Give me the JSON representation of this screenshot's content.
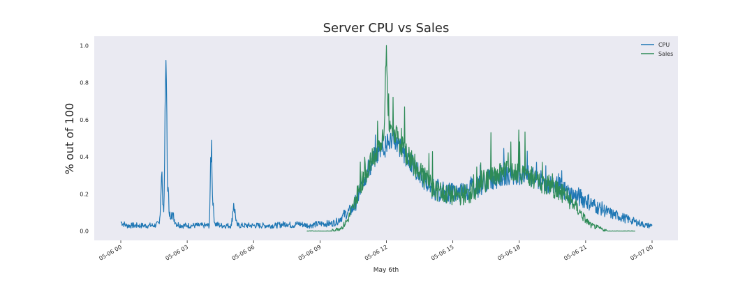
{
  "chart_data": {
    "type": "line",
    "title": "Server CPU vs Sales",
    "xlabel": "May 6th",
    "ylabel": "% out of 100",
    "xlim": [
      "2016-05-06 00:00",
      "2016-05-07 00:00"
    ],
    "ylim": [
      -0.05,
      1.05
    ],
    "yticks": [
      0.0,
      0.2,
      0.4,
      0.6,
      0.8,
      1.0
    ],
    "ytick_labels": [
      "0.0",
      "0.2",
      "0.4",
      "0.6",
      "0.8",
      "1.0"
    ],
    "xticks_hours": [
      0,
      3,
      6,
      9,
      12,
      15,
      18,
      21,
      24
    ],
    "xtick_labels": [
      "05-06 00",
      "05-06 03",
      "05-06 06",
      "05-06 09",
      "05-06 12",
      "05-06 15",
      "05-06 18",
      "05-06 21",
      "05-07 00"
    ],
    "grid": false,
    "legend_position": "top-right",
    "series": [
      {
        "name": "CPU",
        "color": "#1f77b4",
        "x_hours": [
          0.0,
          0.25,
          0.5,
          0.75,
          1.0,
          1.25,
          1.5,
          1.75,
          1.85,
          1.95,
          2.0,
          2.05,
          2.1,
          2.2,
          2.3,
          2.5,
          2.75,
          3.0,
          3.25,
          3.5,
          3.75,
          4.0,
          4.05,
          4.1,
          4.15,
          4.25,
          4.5,
          4.75,
          5.0,
          5.1,
          5.25,
          5.5,
          5.75,
          6.0,
          6.5,
          7.0,
          7.5,
          7.75,
          8.0,
          8.5,
          9.0,
          9.5,
          9.75,
          10.0,
          10.25,
          10.5,
          10.75,
          11.0,
          11.25,
          11.5,
          11.75,
          12.0,
          12.25,
          12.5,
          12.75,
          13.0,
          13.25,
          13.5,
          13.75,
          14.0,
          14.25,
          14.5,
          14.75,
          15.0,
          15.25,
          15.5,
          15.75,
          16.0,
          16.25,
          16.5,
          16.75,
          17.0,
          17.25,
          17.5,
          17.75,
          18.0,
          18.25,
          18.5,
          18.75,
          19.0,
          19.25,
          19.5,
          19.75,
          20.0,
          20.25,
          20.5,
          20.75,
          21.0,
          21.25,
          21.5,
          21.75,
          22.0,
          22.25,
          22.5,
          22.75,
          23.0,
          23.25,
          23.5,
          23.75,
          24.0
        ],
        "values": [
          0.05,
          0.03,
          0.03,
          0.03,
          0.03,
          0.03,
          0.03,
          0.04,
          0.32,
          0.08,
          0.6,
          1.0,
          0.3,
          0.08,
          0.1,
          0.04,
          0.03,
          0.03,
          0.03,
          0.03,
          0.03,
          0.03,
          0.3,
          0.49,
          0.15,
          0.04,
          0.03,
          0.03,
          0.03,
          0.15,
          0.03,
          0.03,
          0.03,
          0.03,
          0.03,
          0.03,
          0.04,
          0.03,
          0.04,
          0.03,
          0.04,
          0.04,
          0.05,
          0.08,
          0.1,
          0.12,
          0.2,
          0.28,
          0.35,
          0.4,
          0.45,
          0.46,
          0.5,
          0.47,
          0.42,
          0.38,
          0.34,
          0.3,
          0.27,
          0.24,
          0.22,
          0.21,
          0.21,
          0.2,
          0.2,
          0.21,
          0.22,
          0.23,
          0.25,
          0.27,
          0.28,
          0.29,
          0.3,
          0.31,
          0.31,
          0.31,
          0.3,
          0.29,
          0.28,
          0.27,
          0.26,
          0.25,
          0.24,
          0.22,
          0.2,
          0.19,
          0.18,
          0.17,
          0.15,
          0.13,
          0.12,
          0.1,
          0.09,
          0.08,
          0.07,
          0.06,
          0.05,
          0.04,
          0.03,
          0.03
        ]
      },
      {
        "name": "Sales",
        "color": "#2e8b57",
        "x_hours": [
          8.4,
          8.75,
          9.0,
          9.25,
          9.5,
          9.75,
          10.0,
          10.25,
          10.5,
          10.75,
          11.0,
          11.25,
          11.5,
          11.75,
          11.9,
          12.0,
          12.1,
          12.25,
          12.5,
          12.75,
          13.0,
          13.25,
          13.5,
          13.75,
          14.0,
          14.25,
          14.5,
          14.75,
          15.0,
          15.25,
          15.5,
          15.75,
          16.0,
          16.25,
          16.5,
          16.75,
          17.0,
          17.25,
          17.5,
          17.75,
          18.0,
          18.25,
          18.5,
          18.75,
          19.0,
          19.25,
          19.5,
          19.75,
          20.0,
          20.25,
          20.5,
          20.75,
          21.0,
          21.25,
          21.5,
          21.75,
          22.0,
          22.25,
          22.5,
          22.75,
          23.0,
          23.25
        ],
        "values": [
          0.0,
          0.0,
          0.0,
          0.0,
          0.0,
          0.01,
          0.02,
          0.06,
          0.13,
          0.22,
          0.3,
          0.36,
          0.42,
          0.47,
          0.55,
          1.0,
          0.52,
          0.55,
          0.5,
          0.45,
          0.4,
          0.36,
          0.32,
          0.28,
          0.25,
          0.22,
          0.2,
          0.2,
          0.19,
          0.19,
          0.2,
          0.2,
          0.22,
          0.24,
          0.27,
          0.29,
          0.31,
          0.32,
          0.33,
          0.33,
          0.32,
          0.31,
          0.3,
          0.28,
          0.26,
          0.25,
          0.24,
          0.22,
          0.2,
          0.17,
          0.14,
          0.1,
          0.06,
          0.03,
          0.02,
          0.01,
          0.0,
          0.0,
          0.0,
          0.0,
          0.0,
          0.0
        ]
      }
    ]
  }
}
